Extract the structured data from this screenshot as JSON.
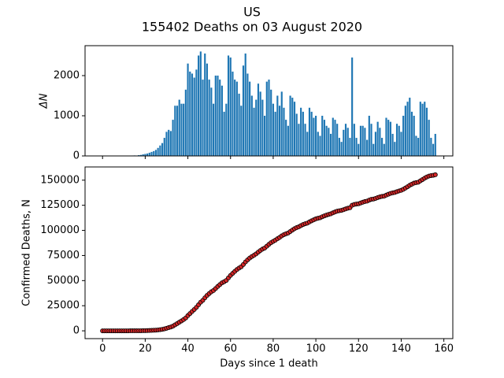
{
  "title": "US",
  "subtitle": "155402 Deaths on 03 August 2020",
  "chart_data": [
    {
      "type": "bar",
      "ylabel": "ΔN",
      "color": "#1f77b4",
      "xticklabels": false,
      "xlim": [
        -8.2,
        164.2
      ],
      "ylim": [
        0,
        2745
      ],
      "yticks": [
        0,
        1000,
        2000
      ],
      "xticks": [
        0,
        20,
        40,
        60,
        80,
        100,
        120,
        140,
        160
      ],
      "x": [
        0,
        1,
        2,
        3,
        4,
        5,
        6,
        7,
        8,
        9,
        10,
        11,
        12,
        13,
        14,
        15,
        16,
        17,
        18,
        19,
        20,
        21,
        22,
        23,
        24,
        25,
        26,
        27,
        28,
        29,
        30,
        31,
        32,
        33,
        34,
        35,
        36,
        37,
        38,
        39,
        40,
        41,
        42,
        43,
        44,
        45,
        46,
        47,
        48,
        49,
        50,
        51,
        52,
        53,
        54,
        55,
        56,
        57,
        58,
        59,
        60,
        61,
        62,
        63,
        64,
        65,
        66,
        67,
        68,
        69,
        70,
        71,
        72,
        73,
        74,
        75,
        76,
        77,
        78,
        79,
        80,
        81,
        82,
        83,
        84,
        85,
        86,
        87,
        88,
        89,
        90,
        91,
        92,
        93,
        94,
        95,
        96,
        97,
        98,
        99,
        100,
        101,
        102,
        103,
        104,
        105,
        106,
        107,
        108,
        109,
        110,
        111,
        112,
        113,
        114,
        115,
        116,
        117,
        118,
        119,
        120,
        121,
        122,
        123,
        124,
        125,
        126,
        127,
        128,
        129,
        130,
        131,
        132,
        133,
        134,
        135,
        136,
        137,
        138,
        139,
        140,
        141,
        142,
        143,
        144,
        145,
        146,
        147,
        148,
        149,
        150,
        151,
        152,
        153,
        154,
        155,
        156
      ],
      "values": [
        1,
        0,
        0,
        0,
        0,
        1,
        0,
        1,
        2,
        1,
        3,
        5,
        4,
        8,
        10,
        12,
        10,
        20,
        25,
        40,
        50,
        60,
        80,
        100,
        120,
        150,
        200,
        260,
        320,
        450,
        600,
        650,
        620,
        900,
        1250,
        1250,
        1400,
        1300,
        1300,
        1650,
        2300,
        2100,
        2050,
        1950,
        2150,
        2500,
        2600,
        1900,
        2550,
        2300,
        1900,
        1700,
        1300,
        2000,
        2000,
        1900,
        1750,
        1100,
        1300,
        2500,
        2450,
        2100,
        1900,
        1850,
        1550,
        1250,
        2250,
        2550,
        2050,
        1850,
        1500,
        1200,
        1400,
        1800,
        1600,
        1400,
        1000,
        1850,
        1900,
        1650,
        1300,
        1100,
        1500,
        1250,
        1600,
        1200,
        900,
        750,
        1500,
        1450,
        1350,
        1050,
        800,
        1200,
        1100,
        800,
        600,
        1200,
        1100,
        950,
        1000,
        600,
        500,
        1000,
        900,
        750,
        700,
        550,
        950,
        900,
        800,
        450,
        350,
        650,
        800,
        700,
        450,
        2450,
        800,
        450,
        300,
        750,
        750,
        700,
        400,
        1000,
        800,
        300,
        600,
        850,
        700,
        450,
        300,
        950,
        900,
        850,
        550,
        350,
        800,
        750,
        600,
        1000,
        1250,
        1350,
        1450,
        1100,
        1000,
        500,
        450,
        1350,
        1300,
        1350,
        1200,
        900,
        450,
        300,
        549
      ]
    },
    {
      "type": "line",
      "xlabel": "Days since 1 death",
      "ylabel": "Confirmed Deaths, N",
      "color": "#d62728",
      "edgecolor": "#000000",
      "xticklabels": true,
      "xlim": [
        -8.2,
        164.2
      ],
      "ylim": [
        -7770,
        163172
      ],
      "yticks": [
        0,
        25000,
        50000,
        75000,
        100000,
        125000,
        150000
      ],
      "xticks": [
        0,
        20,
        40,
        60,
        80,
        100,
        120,
        140,
        160
      ],
      "x": [
        0,
        1,
        2,
        3,
        4,
        5,
        6,
        7,
        8,
        9,
        10,
        11,
        12,
        13,
        14,
        15,
        16,
        17,
        18,
        19,
        20,
        21,
        22,
        23,
        24,
        25,
        26,
        27,
        28,
        29,
        30,
        31,
        32,
        33,
        34,
        35,
        36,
        37,
        38,
        39,
        40,
        41,
        42,
        43,
        44,
        45,
        46,
        47,
        48,
        49,
        50,
        51,
        52,
        53,
        54,
        55,
        56,
        57,
        58,
        59,
        60,
        61,
        62,
        63,
        64,
        65,
        66,
        67,
        68,
        69,
        70,
        71,
        72,
        73,
        74,
        75,
        76,
        77,
        78,
        79,
        80,
        81,
        82,
        83,
        84,
        85,
        86,
        87,
        88,
        89,
        90,
        91,
        92,
        93,
        94,
        95,
        96,
        97,
        98,
        99,
        100,
        101,
        102,
        103,
        104,
        105,
        106,
        107,
        108,
        109,
        110,
        111,
        112,
        113,
        114,
        115,
        116,
        117,
        118,
        119,
        120,
        121,
        122,
        123,
        124,
        125,
        126,
        127,
        128,
        129,
        130,
        131,
        132,
        133,
        134,
        135,
        136,
        137,
        138,
        139,
        140,
        141,
        142,
        143,
        144,
        145,
        146,
        147,
        148,
        149,
        150,
        151,
        152,
        153,
        154,
        155,
        156
      ],
      "values": [
        1,
        1,
        1,
        1,
        1,
        2,
        2,
        3,
        5,
        6,
        9,
        14,
        18,
        26,
        36,
        48,
        58,
        78,
        103,
        143,
        193,
        253,
        333,
        433,
        553,
        703,
        903,
        1163,
        1483,
        1933,
        2533,
        3183,
        3803,
        4703,
        5953,
        7203,
        8603,
        9903,
        11203,
        12853,
        15153,
        17253,
        19303,
        21253,
        23403,
        25903,
        28503,
        30403,
        32953,
        35253,
        37153,
        38853,
        40153,
        42153,
        44153,
        46053,
        47803,
        48903,
        50203,
        52703,
        55153,
        57253,
        59153,
        61003,
        62553,
        63803,
        66053,
        68603,
        70653,
        72503,
        74003,
        75203,
        76603,
        78403,
        80003,
        81403,
        82403,
        84253,
        86153,
        87803,
        89103,
        90203,
        91703,
        92953,
        94553,
        95753,
        96653,
        97403,
        98903,
        100353,
        101703,
        102753,
        103553,
        104753,
        105853,
        106653,
        107253,
        108453,
        109553,
        110503,
        111503,
        112103,
        112603,
        113603,
        114503,
        115253,
        115953,
        116503,
        117453,
        118353,
        119153,
        119603,
        119953,
        120603,
        121403,
        122103,
        122553,
        125003,
        125803,
        126253,
        126553,
        127303,
        128053,
        128753,
        129153,
        130153,
        130953,
        131253,
        131853,
        132703,
        133403,
        133853,
        134153,
        135103,
        136003,
        136853,
        137403,
        137753,
        138553,
        139303,
        139903,
        140903,
        142153,
        143503,
        144953,
        146053,
        147053,
        147553,
        148003,
        149353,
        150653,
        152003,
        153203,
        154103,
        154553,
        154853,
        155402
      ]
    }
  ]
}
